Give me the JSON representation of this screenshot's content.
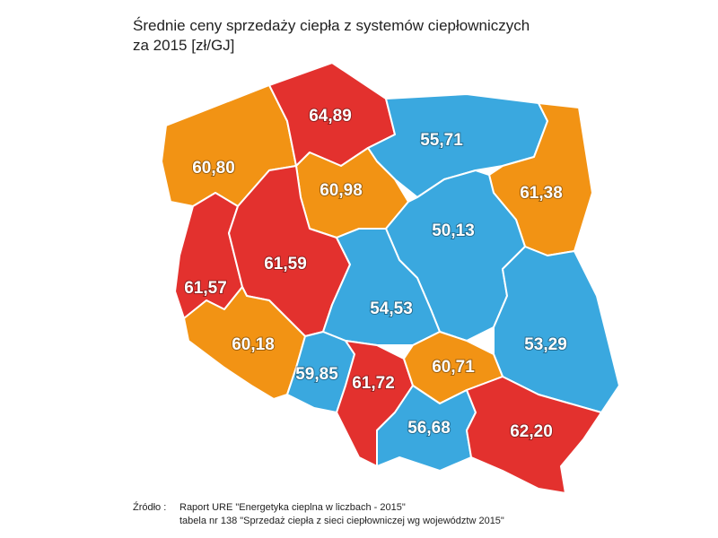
{
  "header": {
    "title_lines": [
      "Średnie ceny sprzedaży ciepła z systemów ciepłowniczych",
      "za 2015 [zł/GJ]"
    ]
  },
  "regions": [
    {
      "label": "60,80",
      "color": "#f29314"
    },
    {
      "label": "64,89",
      "color": "#e3312e"
    },
    {
      "label": "55,71",
      "color": "#3aa8df"
    },
    {
      "label": "61,38",
      "color": "#f29314"
    },
    {
      "label": "60,98",
      "color": "#f29314"
    },
    {
      "label": "61,57",
      "color": "#e3312e"
    },
    {
      "label": "61,59",
      "color": "#e3312e"
    },
    {
      "label": "50,13",
      "color": "#3aa8df"
    },
    {
      "label": "53,29",
      "color": "#3aa8df"
    },
    {
      "label": "54,53",
      "color": "#3aa8df"
    },
    {
      "label": "60,18",
      "color": "#f29314"
    },
    {
      "label": "59,85",
      "color": "#3aa8df"
    },
    {
      "label": "61,72",
      "color": "#e3312e"
    },
    {
      "label": "60,71",
      "color": "#f29314"
    },
    {
      "label": "56,68",
      "color": "#3aa8df"
    },
    {
      "label": "62,20",
      "color": "#e3312e"
    }
  ],
  "source": {
    "prefix": "Źródło :",
    "lines": [
      "Raport URE  \"Energetyka cieplna w liczbach - 2015\"",
      "tabela nr 138 \"Sprzedaż ciepła z sieci ciepłowniczej wg województw 2015\""
    ]
  }
}
